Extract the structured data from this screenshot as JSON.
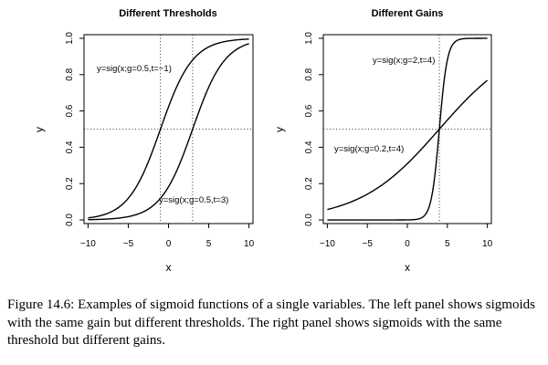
{
  "chart_data": [
    {
      "type": "line",
      "title": "Different Thresholds",
      "xlabel": "x",
      "ylabel": "y",
      "xlim": [
        -10.5,
        10.5
      ],
      "ylim": [
        -0.02,
        1.02
      ],
      "xticks": [
        "-10",
        "-5",
        "0",
        "5",
        "10"
      ],
      "yticks": [
        "0.0",
        "0.2",
        "0.4",
        "0.6",
        "0.8",
        "1.0"
      ],
      "reference_lines": {
        "vertical": [
          -1,
          3
        ],
        "horizontal": [
          0.5
        ],
        "style": "dotted"
      },
      "series": [
        {
          "name": "y=sig(x;g=0.5,t=−1)",
          "gain": 0.5,
          "threshold": -1,
          "x_range": [
            -10,
            10
          ]
        },
        {
          "name": "y=sig(x;g=0.5,t=3)",
          "gain": 0.5,
          "threshold": 3,
          "x_range": [
            -10,
            10
          ]
        }
      ]
    },
    {
      "type": "line",
      "title": "Different Gains",
      "xlabel": "x",
      "ylabel": "y",
      "xlim": [
        -10.5,
        10.5
      ],
      "ylim": [
        -0.02,
        1.02
      ],
      "xticks": [
        "-10",
        "-5",
        "0",
        "5",
        "10"
      ],
      "yticks": [
        "0.0",
        "0.2",
        "0.4",
        "0.6",
        "0.8",
        "1.0"
      ],
      "reference_lines": {
        "vertical": [
          4
        ],
        "horizontal": [
          0.5
        ],
        "style": "dotted"
      },
      "series": [
        {
          "name": "y=sig(x;g=2,t=4)",
          "gain": 2,
          "threshold": 4,
          "x_range": [
            -10,
            10
          ]
        },
        {
          "name": "y=sig(x;g=0.2,t=4)",
          "gain": 0.2,
          "threshold": 4,
          "x_range": [
            -10,
            10
          ]
        }
      ]
    }
  ],
  "caption": "Figure 14.6: Examples of sigmoid functions of a single variables. The left panel shows sigmoids with the same gain but different thresholds. The right panel shows sigmoids with the same threshold but different gains."
}
